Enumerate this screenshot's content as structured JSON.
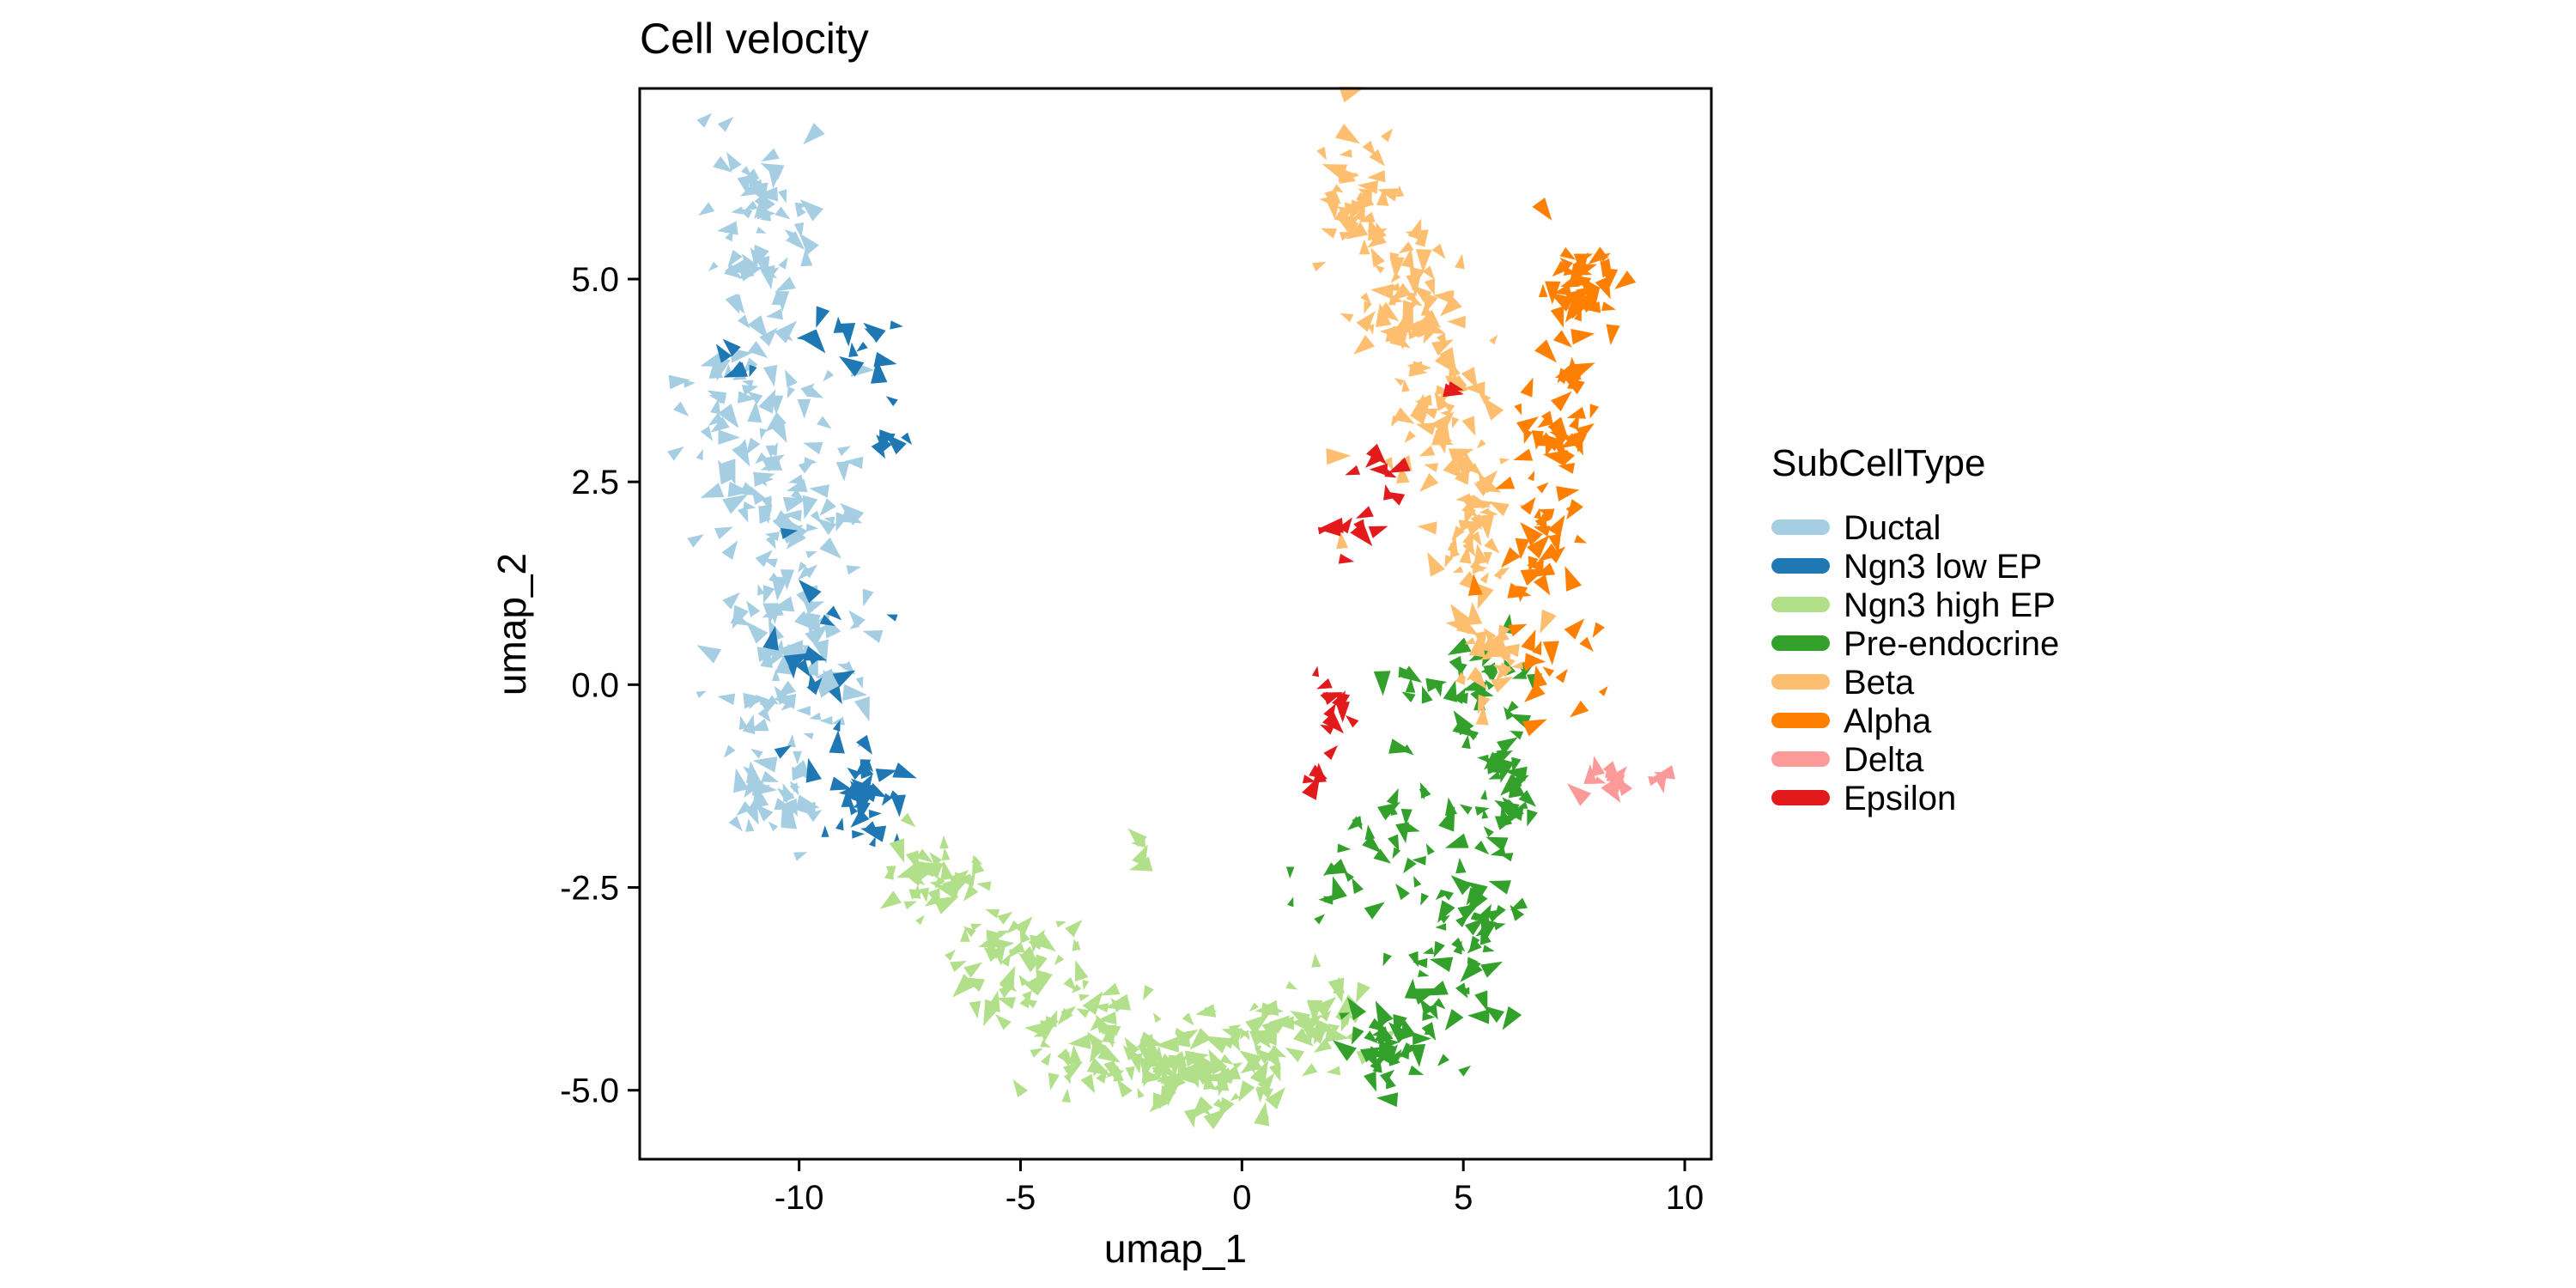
{
  "chart_data": {
    "type": "scatter",
    "title": "Cell velocity",
    "xlabel": "umap_1",
    "ylabel": "umap_2",
    "xlim": [
      -13.6,
      10.6
    ],
    "ylim": [
      -5.85,
      7.35
    ],
    "xticks": [
      -10,
      -5,
      0,
      5,
      10
    ],
    "xtick_labels": [
      "-10",
      "-5",
      "0",
      "5",
      "10"
    ],
    "yticks": [
      -5,
      -2.5,
      0,
      2.5,
      5
    ],
    "ytick_labels": [
      "-5.0",
      "-2.5",
      "0.0",
      "2.5",
      "5.0"
    ],
    "grid": false,
    "legend": {
      "title": "SubCellType",
      "placement": "right",
      "entries": [
        "Ductal",
        "Ngn3 low EP",
        "Ngn3 high EP",
        "Pre-endocrine",
        "Beta",
        "Alpha",
        "Delta",
        "Epsilon"
      ]
    },
    "marker": "arrowhead",
    "series": [
      {
        "name": "Ductal",
        "color": "#A6CEE3",
        "regions": [
          {
            "cx": -10.8,
            "cy": 5.6,
            "sx": 0.55,
            "sy": 0.7,
            "n": 55
          },
          {
            "cx": -11.2,
            "cy": 3.5,
            "sx": 0.6,
            "sy": 0.9,
            "n": 55
          },
          {
            "cx": -9.8,
            "cy": 2.2,
            "sx": 0.9,
            "sy": 1.0,
            "n": 70
          },
          {
            "cx": -10.3,
            "cy": 0.2,
            "sx": 0.8,
            "sy": 0.9,
            "n": 70
          },
          {
            "cx": -10.4,
            "cy": -1.2,
            "sx": 0.6,
            "sy": 0.35,
            "n": 30
          }
        ]
      },
      {
        "name": "Ngn3 low EP",
        "color": "#1F78B4",
        "regions": [
          {
            "cx": -8.5,
            "cy": -1.4,
            "sx": 0.45,
            "sy": 0.3,
            "n": 40
          },
          {
            "cx": -8.6,
            "cy": 4.1,
            "sx": 0.5,
            "sy": 0.25,
            "n": 12
          },
          {
            "cx": -8.0,
            "cy": 3.3,
            "sx": 0.15,
            "sy": 0.3,
            "n": 8
          },
          {
            "cx": -11.6,
            "cy": 3.9,
            "sx": 0.2,
            "sy": 0.2,
            "n": 5
          },
          {
            "cx": -9.7,
            "cy": 0.5,
            "sx": 0.6,
            "sy": 0.8,
            "n": 18
          }
        ]
      },
      {
        "name": "Ngn3 high EP",
        "color": "#B2DF8A",
        "regions": [
          {
            "cx": -6.8,
            "cy": -2.4,
            "sx": 0.6,
            "sy": 0.25,
            "n": 40
          },
          {
            "cx": -5.0,
            "cy": -3.5,
            "sx": 0.8,
            "sy": 0.4,
            "n": 60
          },
          {
            "cx": -2.8,
            "cy": -4.4,
            "sx": 0.9,
            "sy": 0.35,
            "n": 70
          },
          {
            "cx": -0.6,
            "cy": -4.8,
            "sx": 0.9,
            "sy": 0.3,
            "n": 60
          },
          {
            "cx": 1.3,
            "cy": -4.2,
            "sx": 0.8,
            "sy": 0.3,
            "n": 45
          },
          {
            "cx": -2.2,
            "cy": -2.2,
            "sx": 0.2,
            "sy": 0.3,
            "n": 4
          }
        ]
      },
      {
        "name": "Pre-endocrine",
        "color": "#33A02C",
        "regions": [
          {
            "cx": 3.6,
            "cy": -4.4,
            "sx": 0.7,
            "sy": 0.35,
            "n": 55
          },
          {
            "cx": 5.2,
            "cy": -3.0,
            "sx": 0.5,
            "sy": 0.5,
            "n": 45
          },
          {
            "cx": 5.8,
            "cy": -1.4,
            "sx": 0.35,
            "sy": 0.5,
            "n": 35
          },
          {
            "cx": 5.5,
            "cy": 0.0,
            "sx": 0.5,
            "sy": 0.3,
            "n": 30
          },
          {
            "cx": 3.5,
            "cy": -1.6,
            "sx": 0.6,
            "sy": 0.6,
            "n": 25
          },
          {
            "cx": 2.0,
            "cy": -2.4,
            "sx": 0.5,
            "sy": 0.25,
            "n": 12
          },
          {
            "cx": 3.8,
            "cy": 0.0,
            "sx": 0.4,
            "sy": 0.2,
            "n": 8
          }
        ]
      },
      {
        "name": "Beta",
        "color": "#FDBF6F",
        "regions": [
          {
            "cx": 2.6,
            "cy": 5.9,
            "sx": 0.45,
            "sy": 0.45,
            "n": 45
          },
          {
            "cx": 3.7,
            "cy": 4.8,
            "sx": 0.6,
            "sy": 0.45,
            "n": 55
          },
          {
            "cx": 4.6,
            "cy": 3.3,
            "sx": 0.6,
            "sy": 0.55,
            "n": 55
          },
          {
            "cx": 5.3,
            "cy": 1.6,
            "sx": 0.5,
            "sy": 0.6,
            "n": 50
          },
          {
            "cx": 5.6,
            "cy": 0.3,
            "sx": 0.4,
            "sy": 0.35,
            "n": 25
          }
        ]
      },
      {
        "name": "Alpha",
        "color": "#FF7F00",
        "regions": [
          {
            "cx": 7.6,
            "cy": 4.8,
            "sx": 0.45,
            "sy": 0.4,
            "n": 45
          },
          {
            "cx": 7.1,
            "cy": 3.3,
            "sx": 0.5,
            "sy": 0.6,
            "n": 40
          },
          {
            "cx": 6.7,
            "cy": 1.8,
            "sx": 0.45,
            "sy": 0.6,
            "n": 30
          },
          {
            "cx": 7.0,
            "cy": 0.2,
            "sx": 0.5,
            "sy": 0.5,
            "n": 15
          }
        ]
      },
      {
        "name": "Delta",
        "color": "#FB9A99",
        "regions": [
          {
            "cx": 8.3,
            "cy": -1.15,
            "sx": 0.35,
            "sy": 0.12,
            "n": 12
          },
          {
            "cx": 9.4,
            "cy": -1.1,
            "sx": 0.12,
            "sy": 0.08,
            "n": 4
          }
        ]
      },
      {
        "name": "Epsilon",
        "color": "#E31A1C",
        "regions": [
          {
            "cx": 3.0,
            "cy": 2.6,
            "sx": 0.3,
            "sy": 0.2,
            "n": 8
          },
          {
            "cx": 2.4,
            "cy": 1.8,
            "sx": 0.4,
            "sy": 0.25,
            "n": 9
          },
          {
            "cx": 2.0,
            "cy": -0.4,
            "sx": 0.3,
            "sy": 0.35,
            "n": 12
          },
          {
            "cx": 1.7,
            "cy": -1.2,
            "sx": 0.12,
            "sy": 0.15,
            "n": 4
          },
          {
            "cx": 4.7,
            "cy": 3.6,
            "sx": 0.1,
            "sy": 0.1,
            "n": 2
          }
        ]
      }
    ]
  }
}
